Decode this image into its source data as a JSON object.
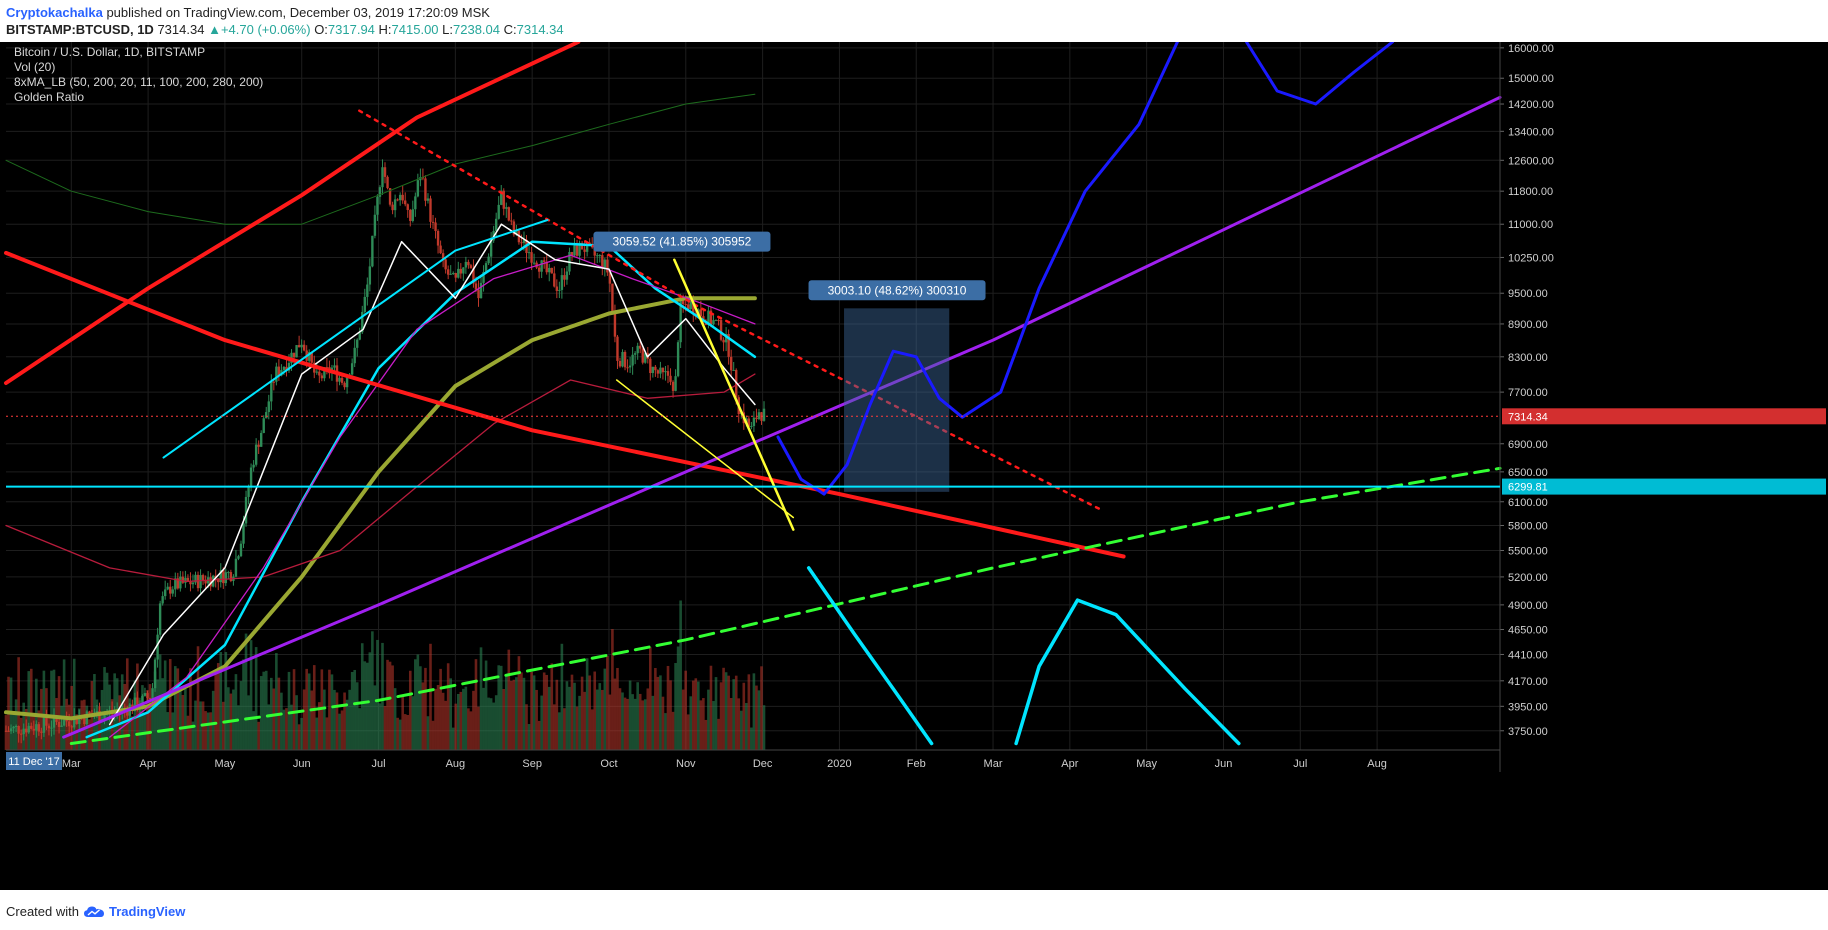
{
  "header": {
    "author": "Cryptokachalka",
    "published_text": "published on TradingView.com, December 03, 2019 17:20:09 MSK",
    "symbol": "BITSTAMP:BTCUSD, 1D",
    "last": "7314.34",
    "change_arrow": "▲",
    "change": "+4.70 (+0.06%)",
    "open_label": "O:",
    "open": "7317.94",
    "high_label": "H:",
    "high": "7415.00",
    "low_label": "L:",
    "low": "7238.04",
    "close_label": "C:",
    "close": "7314.34"
  },
  "legend": {
    "title": "Bitcoin / U.S. Dollar, 1D, BITSTAMP",
    "vol": "Vol (20)",
    "ma": "8xMA_LB (50, 200, 20, 11, 100, 200, 280, 200)",
    "golden": "Golden Ratio"
  },
  "footer": {
    "created_with": "Created with",
    "brand": "TradingView"
  },
  "colors": {
    "background": "#000000",
    "grid": "#1e1e1e",
    "up": "#2e8b57",
    "down": "#c0392b",
    "red_line": "#ff1a1a",
    "purple_line": "#a020f0",
    "cyan_line": "#00e5ff",
    "yellow_line": "#ffff33",
    "green_dash": "#33ff33",
    "blue_path": "#1a1aff"
  },
  "chart_data": {
    "type": "candlestick",
    "y_scale": "log",
    "ylim": [
      3600,
      16200
    ],
    "y_ticks": [
      3750,
      3950,
      4170,
      4410,
      4650,
      4900,
      5200,
      5500,
      5800,
      6100,
      6500,
      6900,
      7700,
      8300,
      8900,
      9500,
      10250,
      11000,
      11800,
      12600,
      13400,
      14200,
      15000,
      16000
    ],
    "y_tick_labels": [
      "3750.00",
      "3950.00",
      "4170.00",
      "4410.00",
      "4650.00",
      "4900.00",
      "5200.00",
      "5500.00",
      "5800.00",
      "6100.00",
      "6500.00",
      "6900.00",
      "7700.00",
      "8300.00",
      "8900.00",
      "9500.00",
      "10250.00",
      "11000.00",
      "11800.00",
      "12600.00",
      "13400.00",
      "14200.00",
      "15000.00",
      "16000.00"
    ],
    "x_labels": [
      "Mar",
      "Apr",
      "May",
      "Jun",
      "Jul",
      "Aug",
      "Sep",
      "Oct",
      "Nov",
      "Dec",
      "2020",
      "Feb",
      "Mar",
      "Apr",
      "May",
      "Jun",
      "Jul",
      "Aug"
    ],
    "x_label_months": [
      2,
      3,
      4,
      5,
      6,
      7,
      8,
      9,
      10,
      11,
      12,
      13,
      14,
      15,
      16,
      17,
      18,
      19
    ],
    "x_range_months": [
      1.15,
      20.6
    ],
    "current_price_label": "7314.34",
    "current_price": 7314.34,
    "cyan_level_label": "6299.81",
    "cyan_level": 6299.81,
    "date_badge": "11 Dec '17",
    "measure_labels": [
      {
        "text": "3059.52 (41.85%) 305952",
        "month": 9.95,
        "price": 10600
      },
      {
        "text": "3003.10 (48.62%) 300310",
        "month": 12.75,
        "price": 9560
      }
    ],
    "projection_box": {
      "month_start": 12.06,
      "month_end": 13.43,
      "price_low": 6230,
      "price_high": 9200
    },
    "price_path": [
      [
        1.15,
        3750
      ],
      [
        1.4,
        3780
      ],
      [
        1.7,
        3800
      ],
      [
        2.0,
        3840
      ],
      [
        2.3,
        3880
      ],
      [
        2.6,
        3900
      ],
      [
        2.9,
        3980
      ],
      [
        3.05,
        4050
      ],
      [
        3.15,
        4900
      ],
      [
        3.3,
        5100
      ],
      [
        3.6,
        5150
      ],
      [
        3.9,
        5200
      ],
      [
        4.1,
        5250
      ],
      [
        4.2,
        5600
      ],
      [
        4.35,
        6600
      ],
      [
        4.5,
        7200
      ],
      [
        4.65,
        8000
      ],
      [
        4.8,
        8200
      ],
      [
        5.0,
        8600
      ],
      [
        5.2,
        7900
      ],
      [
        5.4,
        8100
      ],
      [
        5.55,
        7850
      ],
      [
        5.7,
        8400
      ],
      [
        5.85,
        9600
      ],
      [
        5.95,
        11000
      ],
      [
        6.05,
        12600
      ],
      [
        6.15,
        11400
      ],
      [
        6.3,
        11800
      ],
      [
        6.4,
        11000
      ],
      [
        6.55,
        12300
      ],
      [
        6.7,
        11000
      ],
      [
        6.85,
        10000
      ],
      [
        7.0,
        9700
      ],
      [
        7.15,
        10300
      ],
      [
        7.3,
        9400
      ],
      [
        7.45,
        10500
      ],
      [
        7.6,
        11700
      ],
      [
        7.75,
        10800
      ],
      [
        7.9,
        10500
      ],
      [
        8.05,
        10200
      ],
      [
        8.2,
        9900
      ],
      [
        8.35,
        9600
      ],
      [
        8.5,
        10300
      ],
      [
        8.65,
        10500
      ],
      [
        8.8,
        10300
      ],
      [
        8.9,
        10200
      ],
      [
        9.0,
        9900
      ],
      [
        9.1,
        8300
      ],
      [
        9.25,
        8200
      ],
      [
        9.4,
        8400
      ],
      [
        9.55,
        8100
      ],
      [
        9.7,
        7950
      ],
      [
        9.8,
        8000
      ],
      [
        9.85,
        7500
      ],
      [
        9.92,
        9200
      ],
      [
        10.05,
        9300
      ],
      [
        10.2,
        9100
      ],
      [
        10.4,
        8900
      ],
      [
        10.55,
        8500
      ],
      [
        10.7,
        7400
      ],
      [
        10.85,
        7100
      ],
      [
        10.95,
        7400
      ],
      [
        11.05,
        7314
      ]
    ]
  }
}
